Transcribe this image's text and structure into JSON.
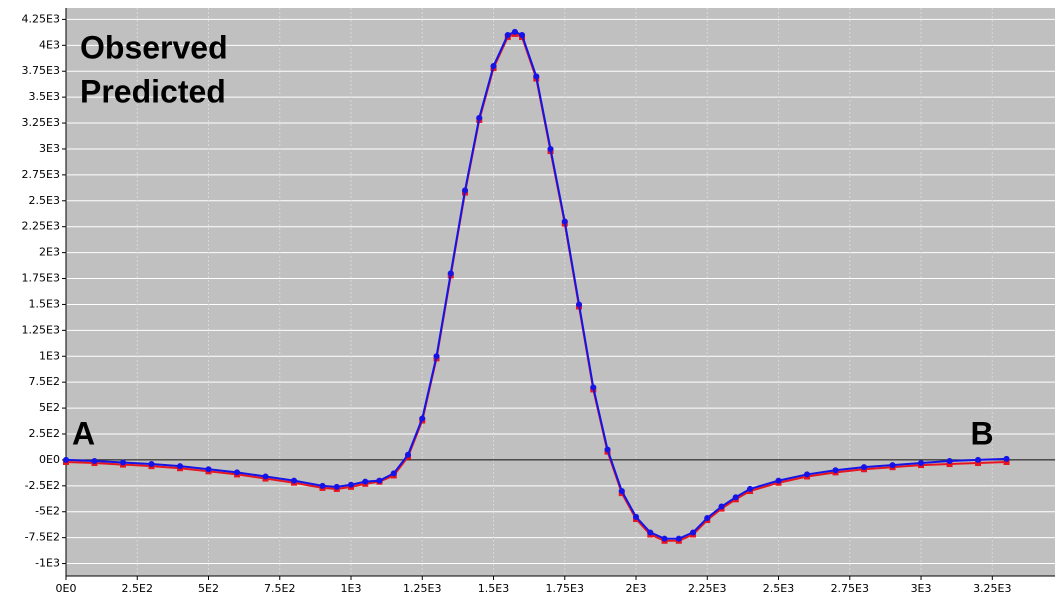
{
  "chart_data": {
    "type": "line",
    "x": [
      0,
      100,
      200,
      300,
      400,
      500,
      600,
      700,
      800,
      900,
      950,
      1000,
      1050,
      1100,
      1150,
      1200,
      1250,
      1300,
      1350,
      1400,
      1450,
      1500,
      1550,
      1575,
      1600,
      1650,
      1700,
      1750,
      1800,
      1850,
      1900,
      1950,
      2000,
      2050,
      2100,
      2150,
      2200,
      2250,
      2300,
      2350,
      2400,
      2500,
      2600,
      2700,
      2800,
      2900,
      3000,
      3100,
      3200,
      3300
    ],
    "series": [
      {
        "name": "Observed",
        "color": "#e8141e",
        "values": [
          -20,
          -30,
          -45,
          -60,
          -80,
          -110,
          -140,
          -180,
          -220,
          -270,
          -280,
          -260,
          -230,
          -210,
          -150,
          30,
          380,
          980,
          1780,
          2580,
          3280,
          3780,
          4080,
          4110,
          4080,
          3680,
          2980,
          2280,
          1480,
          680,
          80,
          -320,
          -570,
          -720,
          -780,
          -780,
          -720,
          -580,
          -470,
          -380,
          -300,
          -220,
          -160,
          -120,
          -90,
          -70,
          -50,
          -40,
          -30,
          -20
        ]
      },
      {
        "name": "Predicted",
        "color": "#1414e8",
        "values": [
          0,
          -10,
          -25,
          -40,
          -60,
          -90,
          -120,
          -160,
          -200,
          -250,
          -260,
          -240,
          -210,
          -200,
          -130,
          50,
          400,
          1000,
          1800,
          2600,
          3300,
          3800,
          4100,
          4130,
          4100,
          3700,
          3000,
          2300,
          1500,
          700,
          100,
          -300,
          -550,
          -700,
          -760,
          -760,
          -700,
          -560,
          -450,
          -360,
          -280,
          -200,
          -140,
          -100,
          -70,
          -50,
          -30,
          -10,
          0,
          10
        ]
      }
    ],
    "annotations": [
      "A",
      "B"
    ],
    "legend": "upper left",
    "grid": true,
    "xlim": [
      0,
      3470
    ],
    "ylim": [
      -1120,
      4360
    ],
    "xticks": [
      {
        "value": 0,
        "label": "0E0"
      },
      {
        "value": 250,
        "label": "2.5E2"
      },
      {
        "value": 500,
        "label": "5E2"
      },
      {
        "value": 750,
        "label": "7.5E2"
      },
      {
        "value": 1000,
        "label": "1E3"
      },
      {
        "value": 1250,
        "label": "1.25E3"
      },
      {
        "value": 1500,
        "label": "1.5E3"
      },
      {
        "value": 1750,
        "label": "1.75E3"
      },
      {
        "value": 2000,
        "label": "2E3"
      },
      {
        "value": 2250,
        "label": "2.25E3"
      },
      {
        "value": 2500,
        "label": "2.5E3"
      },
      {
        "value": 2750,
        "label": "2.75E3"
      },
      {
        "value": 3000,
        "label": "3E3"
      },
      {
        "value": 3250,
        "label": "3.25E3"
      }
    ],
    "yticks": [
      {
        "value": -1000,
        "label": "-1E3"
      },
      {
        "value": -750,
        "label": "-7.5E2"
      },
      {
        "value": -500,
        "label": "-5E2"
      },
      {
        "value": -250,
        "label": "-2.5E2"
      },
      {
        "value": 0,
        "label": "0E0"
      },
      {
        "value": 250,
        "label": "2.5E2"
      },
      {
        "value": 500,
        "label": "5E2"
      },
      {
        "value": 750,
        "label": "7.5E2"
      },
      {
        "value": 1000,
        "label": "1E3"
      },
      {
        "value": 1250,
        "label": "1.25E3"
      },
      {
        "value": 1500,
        "label": "1.5E3"
      },
      {
        "value": 1750,
        "label": "1.75E3"
      },
      {
        "value": 2000,
        "label": "2E3"
      },
      {
        "value": 2250,
        "label": "2.25E3"
      },
      {
        "value": 2500,
        "label": "2.5E3"
      },
      {
        "value": 2750,
        "label": "2.75E3"
      },
      {
        "value": 3000,
        "label": "3E3"
      },
      {
        "value": 3250,
        "label": "3.25E3"
      },
      {
        "value": 3500,
        "label": "3.5E3"
      },
      {
        "value": 3750,
        "label": "3.75E3"
      },
      {
        "value": 4000,
        "label": "4E3"
      },
      {
        "value": 4250,
        "label": "4.25E3"
      }
    ]
  }
}
